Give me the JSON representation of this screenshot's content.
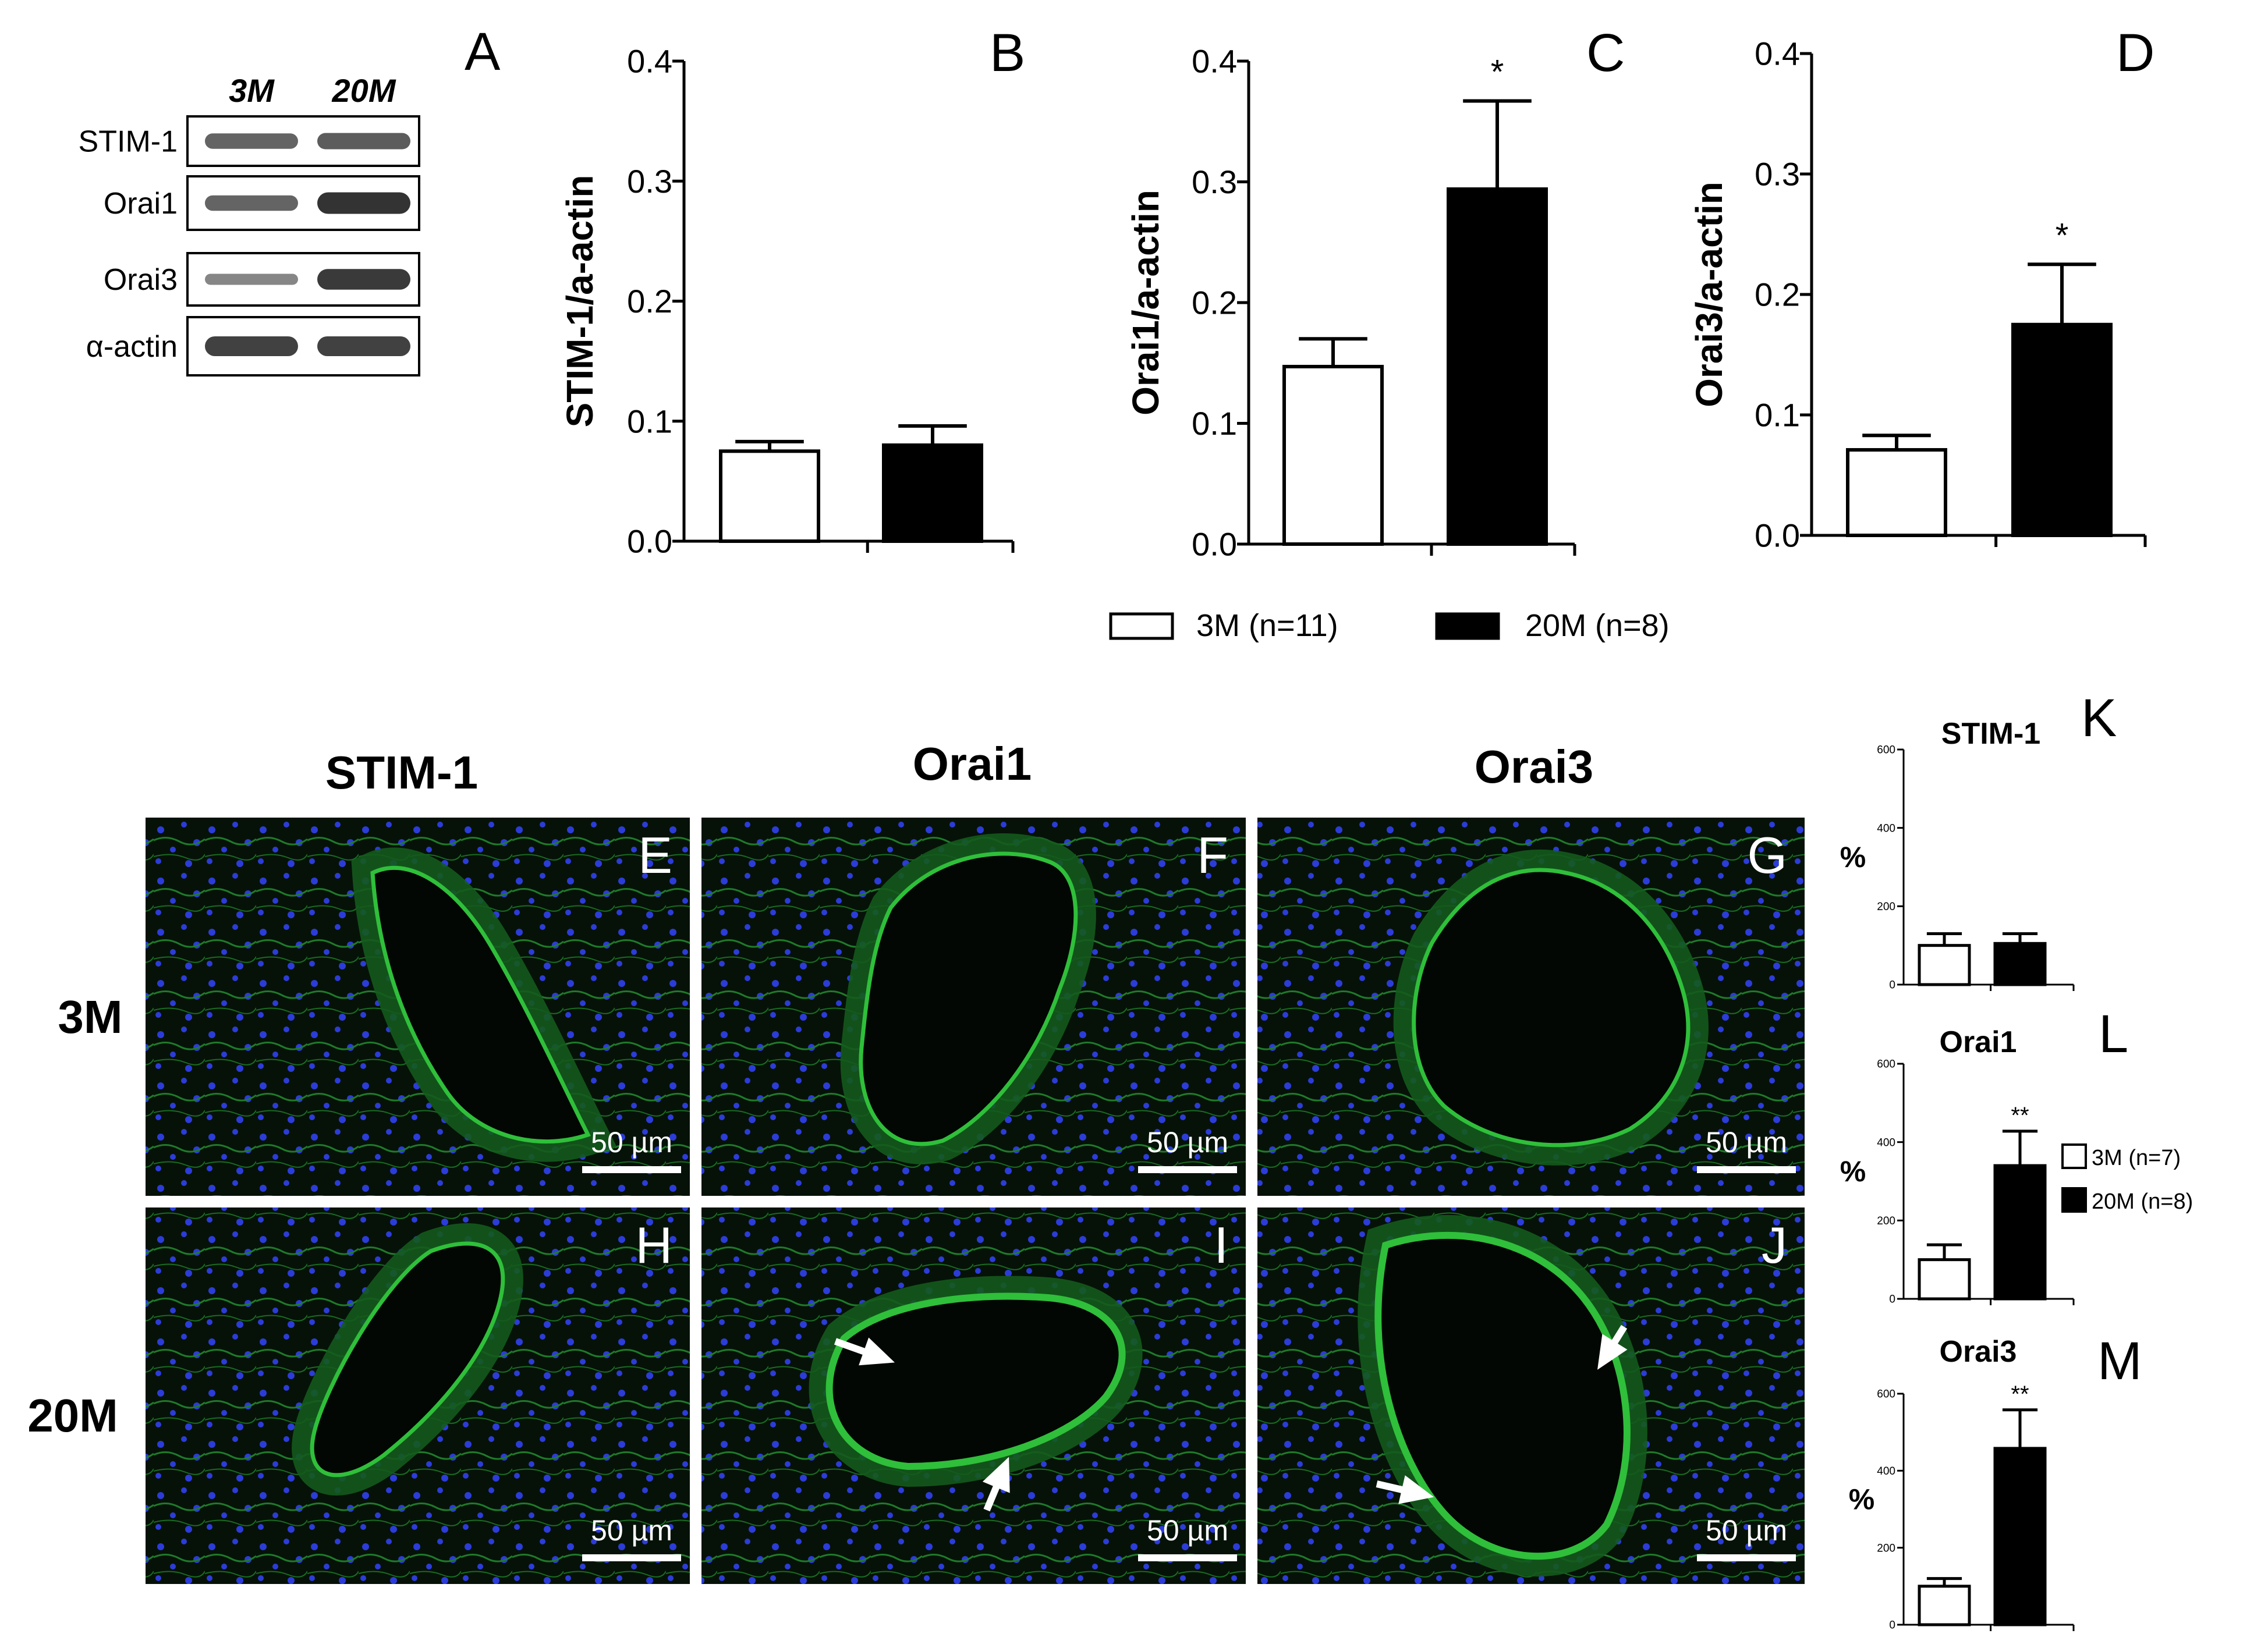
{
  "colors": {
    "bar_3m": "#ffffff",
    "bar_20m": "#000000",
    "axis": "#000000",
    "nuclei": "#2c3cd8",
    "stain": "#2fbf3a",
    "tissue": "#061208"
  },
  "western": {
    "panel_letter": "A",
    "lanes": [
      "3M",
      "20M"
    ],
    "rows": [
      {
        "label": "STIM-1",
        "band_3m": 0.55,
        "band_20m": 0.6
      },
      {
        "label": "Orai1",
        "band_3m": 0.55,
        "band_20m": 0.9
      },
      {
        "label": "Orai3",
        "band_3m": 0.3,
        "band_20m": 0.85
      },
      {
        "label": "α-actin",
        "band_3m": 0.8,
        "band_20m": 0.8
      }
    ]
  },
  "top_legend": {
    "items": [
      {
        "label": "3M (n=11)",
        "color": "#ffffff"
      },
      {
        "label": "20M (n=8)",
        "color": "#000000"
      }
    ]
  },
  "micro": {
    "column_titles": [
      "STIM-1",
      "Orai1",
      "Orai3"
    ],
    "row_labels": [
      "3M",
      "20M"
    ],
    "panel_letters": [
      "E",
      "F",
      "G",
      "H",
      "I",
      "J"
    ],
    "scale_label": "50 µm"
  },
  "side_legend": {
    "items": [
      {
        "label": "3M (n=7)",
        "color": "#ffffff"
      },
      {
        "label": "20M (n=8)",
        "color": "#000000"
      }
    ]
  },
  "chart_data": [
    {
      "panel": "B",
      "type": "bar",
      "categories": [
        "3M",
        "20M"
      ],
      "values": [
        0.075,
        0.08
      ],
      "errors": [
        0.008,
        0.016
      ],
      "significance": [
        "",
        ""
      ],
      "ylabel": "STIM-1/a-actin",
      "ylim": [
        0,
        0.4
      ],
      "yticks": [
        "0.0",
        "0.1",
        "0.2",
        "0.3",
        "0.4"
      ]
    },
    {
      "panel": "C",
      "type": "bar",
      "categories": [
        "3M",
        "20M"
      ],
      "values": [
        0.147,
        0.294
      ],
      "errors": [
        0.023,
        0.073
      ],
      "significance": [
        "",
        "*"
      ],
      "ylabel": "Orai1/a-actin",
      "ylim": [
        0,
        0.4
      ],
      "yticks": [
        "0.0",
        "0.1",
        "0.2",
        "0.3",
        "0.4"
      ]
    },
    {
      "panel": "D",
      "type": "bar",
      "categories": [
        "3M",
        "20M"
      ],
      "values": [
        0.071,
        0.175
      ],
      "errors": [
        0.012,
        0.05
      ],
      "significance": [
        "",
        "*"
      ],
      "ylabel": "Orai3/a-actin",
      "ylim": [
        0,
        0.4
      ],
      "yticks": [
        "0.0",
        "0.1",
        "0.2",
        "0.3",
        "0.4"
      ]
    },
    {
      "panel": "K",
      "type": "bar",
      "title": "STIM-1",
      "categories": [
        "3M",
        "20M"
      ],
      "values": [
        100,
        105
      ],
      "errors": [
        30,
        25
      ],
      "significance": [
        "",
        ""
      ],
      "ylabel": "%",
      "ylim": [
        0,
        600
      ],
      "yticks": [
        "0",
        "200",
        "400",
        "600"
      ]
    },
    {
      "panel": "L",
      "type": "bar",
      "title": "Orai1",
      "categories": [
        "3M",
        "20M"
      ],
      "values": [
        100,
        340
      ],
      "errors": [
        38,
        88
      ],
      "significance": [
        "",
        "**"
      ],
      "ylabel": "%",
      "ylim": [
        0,
        600
      ],
      "yticks": [
        "0",
        "200",
        "400",
        "600"
      ]
    },
    {
      "panel": "M",
      "type": "bar",
      "title": "Orai3",
      "categories": [
        "3M",
        "20M"
      ],
      "values": [
        100,
        458
      ],
      "errors": [
        20,
        100
      ],
      "significance": [
        "",
        "**"
      ],
      "ylabel": "%",
      "ylim": [
        0,
        600
      ],
      "yticks": [
        "0",
        "200",
        "400",
        "600"
      ]
    }
  ]
}
